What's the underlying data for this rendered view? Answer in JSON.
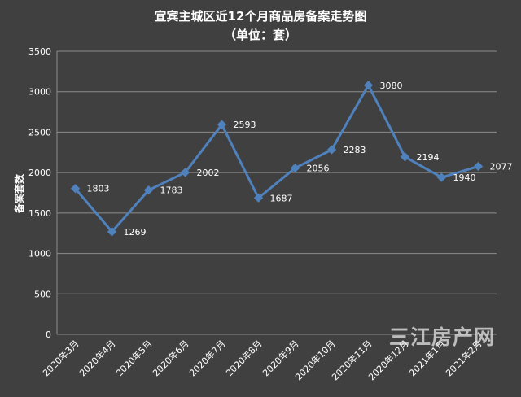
{
  "chart_data": {
    "type": "line",
    "title": "宜宾主城区近12个月商品房备案走势图",
    "subtitle": "（单位：套）",
    "ylabel": "备案套数",
    "xlabel": "",
    "categories": [
      "2020年3月",
      "2020年4月",
      "2020年5月",
      "2020年6月",
      "2020年7月",
      "2020年8月",
      "2020年9月",
      "2020年10月",
      "2020年11月",
      "2020年12月",
      "2021年1月",
      "2021年2月"
    ],
    "series": [
      {
        "values": [
          1803,
          1269,
          1783,
          2002,
          2593,
          1687,
          2056,
          2283,
          3080,
          2194,
          1940,
          2077
        ]
      }
    ],
    "ylim": [
      0,
      3500
    ],
    "yticks": [
      0,
      500,
      1000,
      1500,
      2000,
      2500,
      3000,
      3500
    ],
    "grid": true,
    "legend": "none",
    "colors": {
      "background": "#404040",
      "line": "#4f81bd",
      "grid": "#8c8c8c",
      "text": "#ffffff"
    }
  },
  "watermark": "三江房产网"
}
